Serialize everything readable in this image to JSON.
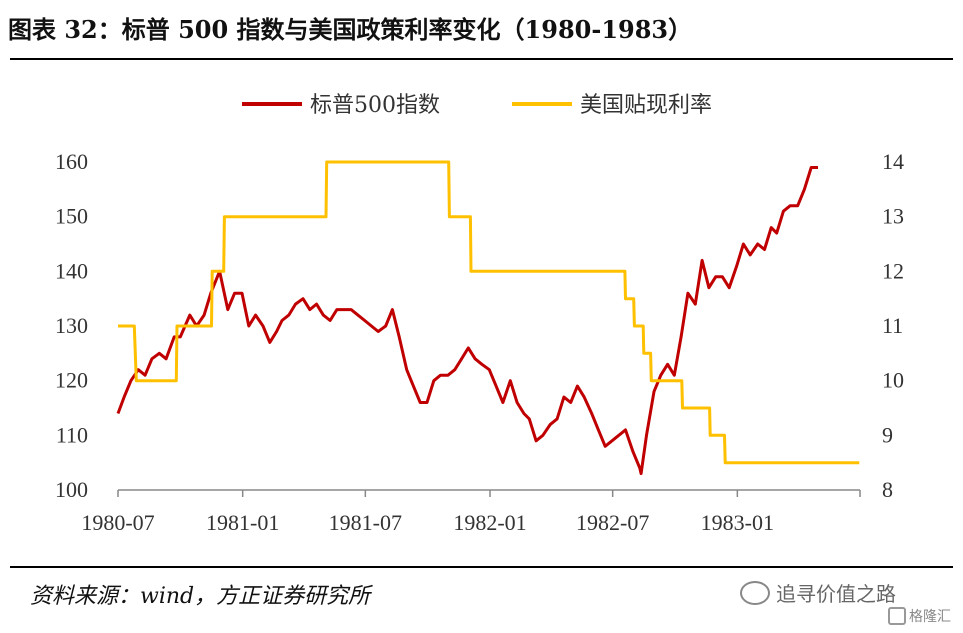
{
  "title": "图表 32：标普 500 指数与美国政策利率变化（1980-1983）",
  "source": "资料来源：wind，方正证券研究所",
  "watermark": "追寻价值之路",
  "watermark_sub": "格隆汇",
  "colors": {
    "sp500": "#C00000",
    "rate": "#FFC000",
    "axis": "#888888"
  },
  "chart_data": {
    "type": "line",
    "title": "图表 32：标普 500 指数与美国政策利率变化（1980-1983）",
    "x_tick_labels": [
      "1980-07",
      "1981-01",
      "1981-07",
      "1982-01",
      "1982-07",
      "1983-01"
    ],
    "y_left": {
      "ticks": [
        100,
        110,
        120,
        130,
        140,
        150,
        160
      ],
      "range": [
        100,
        160
      ]
    },
    "y_right": {
      "ticks": [
        8,
        9,
        10,
        11,
        12,
        13,
        14
      ],
      "range": [
        8,
        14
      ]
    },
    "legend": {
      "position": "top-center",
      "entries": [
        "标普500指数",
        "美国贴现利率"
      ]
    },
    "grid": false,
    "series": [
      {
        "name": "标普500指数",
        "axis": "left",
        "points": [
          [
            "1980-07-01",
            114
          ],
          [
            "1980-07-10",
            117
          ],
          [
            "1980-07-20",
            120
          ],
          [
            "1980-07-31",
            122
          ],
          [
            "1980-08-10",
            121
          ],
          [
            "1980-08-20",
            124
          ],
          [
            "1980-08-31",
            125
          ],
          [
            "1980-09-10",
            124
          ],
          [
            "1980-09-22",
            128
          ],
          [
            "1980-10-01",
            128
          ],
          [
            "1980-10-15",
            132
          ],
          [
            "1980-10-25",
            130
          ],
          [
            "1980-11-05",
            132
          ],
          [
            "1980-11-15",
            136
          ],
          [
            "1980-11-28",
            140
          ],
          [
            "1980-12-10",
            133
          ],
          [
            "1980-12-20",
            136
          ],
          [
            "1980-12-31",
            136
          ],
          [
            "1981-01-10",
            130
          ],
          [
            "1981-01-20",
            132
          ],
          [
            "1981-01-31",
            130
          ],
          [
            "1981-02-10",
            127
          ],
          [
            "1981-02-20",
            129
          ],
          [
            "1981-02-28",
            131
          ],
          [
            "1981-03-10",
            132
          ],
          [
            "1981-03-20",
            134
          ],
          [
            "1981-03-31",
            135
          ],
          [
            "1981-04-10",
            133
          ],
          [
            "1981-04-20",
            134
          ],
          [
            "1981-04-30",
            132
          ],
          [
            "1981-05-10",
            131
          ],
          [
            "1981-05-20",
            133
          ],
          [
            "1981-05-31",
            133
          ],
          [
            "1981-06-10",
            133
          ],
          [
            "1981-06-20",
            132
          ],
          [
            "1981-06-30",
            131
          ],
          [
            "1981-07-10",
            130
          ],
          [
            "1981-07-20",
            129
          ],
          [
            "1981-07-31",
            130
          ],
          [
            "1981-08-10",
            133
          ],
          [
            "1981-08-20",
            128
          ],
          [
            "1981-08-31",
            122
          ],
          [
            "1981-09-10",
            119
          ],
          [
            "1981-09-20",
            116
          ],
          [
            "1981-09-30",
            116
          ],
          [
            "1981-10-10",
            120
          ],
          [
            "1981-10-20",
            121
          ],
          [
            "1981-10-31",
            121
          ],
          [
            "1981-11-10",
            122
          ],
          [
            "1981-11-20",
            124
          ],
          [
            "1981-11-30",
            126
          ],
          [
            "1981-12-10",
            124
          ],
          [
            "1981-12-20",
            123
          ],
          [
            "1981-12-31",
            122
          ],
          [
            "1982-01-10",
            119
          ],
          [
            "1982-01-20",
            116
          ],
          [
            "1982-01-31",
            120
          ],
          [
            "1982-02-10",
            116
          ],
          [
            "1982-02-20",
            114
          ],
          [
            "1982-02-28",
            113
          ],
          [
            "1982-03-10",
            109
          ],
          [
            "1982-03-20",
            110
          ],
          [
            "1982-03-31",
            112
          ],
          [
            "1982-04-10",
            113
          ],
          [
            "1982-04-20",
            117
          ],
          [
            "1982-04-30",
            116
          ],
          [
            "1982-05-10",
            119
          ],
          [
            "1982-05-20",
            117
          ],
          [
            "1982-05-31",
            114
          ],
          [
            "1982-06-10",
            111
          ],
          [
            "1982-06-20",
            108
          ],
          [
            "1982-06-30",
            109
          ],
          [
            "1982-07-10",
            110
          ],
          [
            "1982-07-20",
            111
          ],
          [
            "1982-07-31",
            107
          ],
          [
            "1982-08-10",
            104
          ],
          [
            "1982-08-12",
            103
          ],
          [
            "1982-08-20",
            110
          ],
          [
            "1982-08-31",
            118
          ],
          [
            "1982-09-10",
            121
          ],
          [
            "1982-09-20",
            123
          ],
          [
            "1982-09-30",
            121
          ],
          [
            "1982-10-10",
            128
          ],
          [
            "1982-10-20",
            136
          ],
          [
            "1982-10-31",
            134
          ],
          [
            "1982-11-10",
            142
          ],
          [
            "1982-11-20",
            137
          ],
          [
            "1982-11-30",
            139
          ],
          [
            "1982-12-10",
            139
          ],
          [
            "1982-12-20",
            137
          ],
          [
            "1982-12-31",
            141
          ],
          [
            "1983-01-10",
            145
          ],
          [
            "1983-01-20",
            143
          ],
          [
            "1983-01-31",
            145
          ],
          [
            "1983-02-10",
            144
          ],
          [
            "1983-02-20",
            148
          ],
          [
            "1983-02-28",
            147
          ],
          [
            "1983-03-10",
            151
          ],
          [
            "1983-03-20",
            152
          ],
          [
            "1983-03-31",
            152
          ],
          [
            "1983-04-10",
            155
          ],
          [
            "1983-04-20",
            159
          ],
          [
            "1983-04-30",
            159
          ]
        ]
      },
      {
        "name": "美国贴现利率",
        "axis": "right",
        "points": [
          [
            "1980-07-01",
            11
          ],
          [
            "1980-07-25",
            11
          ],
          [
            "1980-07-28",
            10
          ],
          [
            "1980-09-25",
            10
          ],
          [
            "1980-09-26",
            11
          ],
          [
            "1980-11-16",
            11
          ],
          [
            "1980-11-17",
            12
          ],
          [
            "1980-12-04",
            12
          ],
          [
            "1980-12-05",
            13
          ],
          [
            "1981-05-04",
            13
          ],
          [
            "1981-05-05",
            14
          ],
          [
            "1981-11-01",
            14
          ],
          [
            "1981-11-02",
            13
          ],
          [
            "1981-12-03",
            13
          ],
          [
            "1981-12-04",
            12
          ],
          [
            "1982-07-19",
            12
          ],
          [
            "1982-07-20",
            11.5
          ],
          [
            "1982-08-01",
            11.5
          ],
          [
            "1982-08-02",
            11
          ],
          [
            "1982-08-15",
            11
          ],
          [
            "1982-08-16",
            10.5
          ],
          [
            "1982-08-26",
            10.5
          ],
          [
            "1982-08-27",
            10
          ],
          [
            "1982-10-11",
            10
          ],
          [
            "1982-10-12",
            9.5
          ],
          [
            "1982-11-21",
            9.5
          ],
          [
            "1982-11-22",
            9
          ],
          [
            "1982-12-13",
            9
          ],
          [
            "1982-12-14",
            8.5
          ],
          [
            "1983-06-30",
            8.5
          ]
        ]
      }
    ]
  }
}
